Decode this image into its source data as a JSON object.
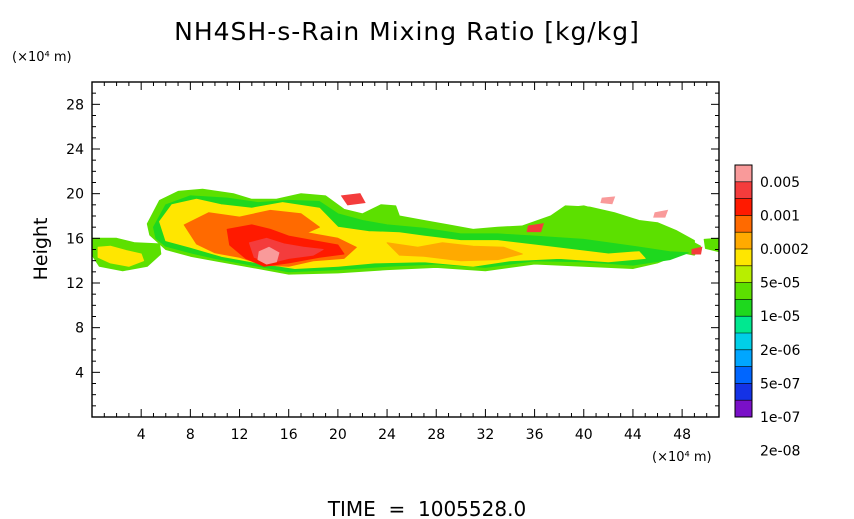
{
  "chart_data": {
    "type": "heatmap",
    "title": "NH4SH-s-Rain Mixing Ratio [kg/kg]",
    "ylabel": "Height",
    "x_unit_label": "(×10⁴ m)",
    "y_unit_label": "(×10⁴ m)",
    "xlim": [
      0,
      51
    ],
    "ylim": [
      0,
      30
    ],
    "x_ticks": [
      "4",
      "8",
      "12",
      "16",
      "20",
      "24",
      "28",
      "32",
      "36",
      "40",
      "44",
      "48"
    ],
    "y_ticks": [
      "4",
      "8",
      "12",
      "16",
      "20",
      "24",
      "28"
    ],
    "footer": "TIME  =  1005528.0",
    "colorbar": {
      "labels": [
        "0.005",
        "0.001",
        "0.0002",
        "5e-05",
        "1e-05",
        "2e-06",
        "5e-07",
        "1e-07",
        "2e-08"
      ],
      "colors": [
        "#f99a9a",
        "#f43c3c",
        "#ff1a00",
        "#ff6a00",
        "#ffaa00",
        "#ffe600",
        "#b8ee00",
        "#5ce000",
        "#1ed81e",
        "#00e890",
        "#00cfe8",
        "#00a6ff",
        "#0066ff",
        "#1432e6",
        "#7a10c8"
      ]
    },
    "regions": [
      {
        "name": "left-edge-low",
        "level": 7,
        "poly": [
          [
            0,
            16
          ],
          [
            2,
            16
          ],
          [
            3.5,
            15.6
          ],
          [
            5.5,
            15.5
          ],
          [
            5.6,
            14.6
          ],
          [
            4.5,
            13.5
          ],
          [
            2.5,
            13.1
          ],
          [
            0.6,
            13.5
          ],
          [
            0,
            14.5
          ]
        ]
      },
      {
        "name": "main-body-outer",
        "level": 7,
        "poly": [
          [
            4.5,
            17.3
          ],
          [
            5.5,
            19.4
          ],
          [
            7,
            20.2
          ],
          [
            9,
            20.4
          ],
          [
            11.5,
            20
          ],
          [
            13,
            19.5
          ],
          [
            15,
            19.5
          ],
          [
            17,
            20
          ],
          [
            19,
            19.8
          ],
          [
            20.5,
            18.6
          ],
          [
            22,
            18.2
          ],
          [
            23.5,
            19
          ],
          [
            24.7,
            18.9
          ],
          [
            25,
            18
          ],
          [
            27,
            17.6
          ],
          [
            29,
            17.2
          ],
          [
            31,
            16.8
          ],
          [
            33,
            17
          ],
          [
            35,
            17.1
          ],
          [
            37,
            16.9
          ],
          [
            38.4,
            18.7
          ],
          [
            40,
            18.9
          ],
          [
            42,
            18.3
          ],
          [
            44,
            17.5
          ],
          [
            46,
            17.2
          ],
          [
            47.5,
            16.6
          ],
          [
            49,
            15.6
          ],
          [
            49.5,
            15.3
          ],
          [
            49,
            14.5
          ],
          [
            48,
            14.7
          ],
          [
            46,
            13.8
          ],
          [
            44,
            13.3
          ],
          [
            40,
            13.5
          ],
          [
            36,
            13.7
          ],
          [
            32,
            13.1
          ],
          [
            28,
            13.4
          ],
          [
            24,
            13.2
          ],
          [
            20,
            12.9
          ],
          [
            16,
            12.8
          ],
          [
            13,
            13.4
          ],
          [
            10,
            14
          ],
          [
            8,
            14.4
          ],
          [
            6,
            15
          ],
          [
            5.4,
            15.6
          ],
          [
            4.7,
            16.3
          ]
        ]
      },
      {
        "name": "upper-right-shelf",
        "level": 7,
        "poly": [
          [
            35,
            17.1
          ],
          [
            37.3,
            18
          ],
          [
            38.5,
            18.9
          ],
          [
            40.5,
            18.8
          ],
          [
            42.5,
            18.3
          ],
          [
            44.5,
            17.6
          ],
          [
            46,
            17.4
          ],
          [
            47.5,
            16.7
          ],
          [
            49,
            15.8
          ],
          [
            49,
            14.8
          ],
          [
            46,
            15.2
          ],
          [
            43,
            15.8
          ],
          [
            40,
            16
          ],
          [
            37,
            16.3
          ]
        ]
      },
      {
        "name": "main-body-blue",
        "level": 6,
        "poly": [
          [
            5,
            17
          ],
          [
            6,
            19
          ],
          [
            8,
            19.8
          ],
          [
            11,
            19.6
          ],
          [
            13.5,
            19.2
          ],
          [
            16,
            19.4
          ],
          [
            18.5,
            19.3
          ],
          [
            20,
            18.2
          ],
          [
            22,
            17.6
          ],
          [
            24,
            17.2
          ],
          [
            27,
            16.9
          ],
          [
            30,
            16.4
          ],
          [
            33,
            16.4
          ],
          [
            36,
            16.2
          ],
          [
            40,
            15.9
          ],
          [
            44,
            15.3
          ],
          [
            47,
            14.8
          ],
          [
            48.5,
            14.7
          ],
          [
            47,
            14.1
          ],
          [
            44,
            13.6
          ],
          [
            40,
            13.9
          ],
          [
            36,
            14
          ],
          [
            32,
            13.4
          ],
          [
            28,
            13.7
          ],
          [
            24,
            13.5
          ],
          [
            20,
            13.2
          ],
          [
            16,
            13
          ],
          [
            13,
            13.6
          ],
          [
            10,
            14.2
          ],
          [
            8,
            14.7
          ],
          [
            6,
            15.3
          ],
          [
            5.2,
            16
          ]
        ]
      },
      {
        "name": "main-body-green",
        "level": 9,
        "poly": [
          [
            5.5,
            17.5
          ],
          [
            6.5,
            19
          ],
          [
            8.5,
            19.5
          ],
          [
            10.5,
            19
          ],
          [
            13,
            18.7
          ],
          [
            15.5,
            19.2
          ],
          [
            18.5,
            18.7
          ],
          [
            20,
            17
          ],
          [
            22.5,
            16.6
          ],
          [
            25,
            16.5
          ],
          [
            27,
            16.2
          ],
          [
            30,
            15.8
          ],
          [
            33,
            15.8
          ],
          [
            36,
            15.4
          ],
          [
            39,
            15
          ],
          [
            42,
            14.6
          ],
          [
            44.5,
            14.8
          ],
          [
            45,
            14.2
          ],
          [
            42,
            13.9
          ],
          [
            38,
            14.2
          ],
          [
            34,
            14
          ],
          [
            31,
            13.5
          ],
          [
            27,
            13.9
          ],
          [
            23,
            13.8
          ],
          [
            20,
            13.5
          ],
          [
            16.5,
            13.3
          ],
          [
            13.5,
            13.8
          ],
          [
            10.5,
            14.4
          ],
          [
            8,
            15.2
          ],
          [
            6,
            15.8
          ]
        ]
      },
      {
        "name": "left-edge-green",
        "level": 9,
        "poly": [
          [
            0.5,
            15.2
          ],
          [
            1.5,
            15.3
          ],
          [
            2.8,
            14.9
          ],
          [
            4,
            14.6
          ],
          [
            4.2,
            14
          ],
          [
            3,
            13.5
          ],
          [
            1.5,
            13.8
          ],
          [
            0.5,
            14.3
          ]
        ]
      },
      {
        "name": "core-yellow",
        "level": 11,
        "poly": [
          [
            7.5,
            17.2
          ],
          [
            9.5,
            18.3
          ],
          [
            12,
            17.9
          ],
          [
            14.5,
            18.5
          ],
          [
            17,
            18.2
          ],
          [
            18.5,
            17
          ],
          [
            17.5,
            16.5
          ],
          [
            20,
            16
          ],
          [
            21.5,
            15.2
          ],
          [
            20.5,
            14.2
          ],
          [
            18,
            14
          ],
          [
            16,
            13.5
          ],
          [
            14,
            13.6
          ],
          [
            12,
            14.3
          ],
          [
            10,
            14.7
          ],
          [
            8.5,
            15.5
          ]
        ]
      },
      {
        "name": "core-orange",
        "level": 12,
        "poly": [
          [
            11,
            16.8
          ],
          [
            13,
            17.2
          ],
          [
            14.5,
            16.8
          ],
          [
            16,
            16.2
          ],
          [
            18,
            15.8
          ],
          [
            20,
            15.4
          ],
          [
            20.5,
            14.6
          ],
          [
            18.5,
            14.3
          ],
          [
            16,
            13.8
          ],
          [
            14,
            13.5
          ],
          [
            12.5,
            14.2
          ],
          [
            11.2,
            15.4
          ]
        ]
      },
      {
        "name": "core-red-orange",
        "level": 13,
        "poly": [
          [
            12.8,
            15.6
          ],
          [
            14.2,
            16
          ],
          [
            15.6,
            15.5
          ],
          [
            17.2,
            15.2
          ],
          [
            18.8,
            15
          ],
          [
            18,
            14.5
          ],
          [
            16,
            14.2
          ],
          [
            14.5,
            13.8
          ],
          [
            13.2,
            14.3
          ]
        ]
      },
      {
        "name": "core-red",
        "level": 14,
        "poly": [
          [
            13.6,
            14.8
          ],
          [
            14.4,
            15.2
          ],
          [
            15.2,
            14.7
          ],
          [
            15,
            13.9
          ],
          [
            14.2,
            13.7
          ],
          [
            13.5,
            14.1
          ]
        ]
      },
      {
        "name": "right-green-ridge",
        "level": 10,
        "poly": [
          [
            24,
            15.6
          ],
          [
            26.5,
            15.2
          ],
          [
            28.5,
            15.6
          ],
          [
            31,
            15.3
          ],
          [
            33.5,
            15.2
          ],
          [
            35,
            14.6
          ],
          [
            33,
            14.1
          ],
          [
            30,
            14
          ],
          [
            27,
            14.4
          ],
          [
            25,
            14.5
          ]
        ]
      },
      {
        "name": "right-edge-high",
        "level": 7,
        "poly": [
          [
            49.8,
            15.9
          ],
          [
            51,
            16
          ],
          [
            51,
            14.8
          ],
          [
            49.9,
            15.1
          ]
        ]
      }
    ],
    "wisps": [
      {
        "level": 13,
        "poly": [
          [
            20.3,
            19.8
          ],
          [
            21.8,
            20
          ],
          [
            22.2,
            19.2
          ],
          [
            20.8,
            19
          ]
        ]
      },
      {
        "level": 14,
        "poly": [
          [
            41.5,
            19.6
          ],
          [
            42.5,
            19.7
          ],
          [
            42.3,
            19.1
          ],
          [
            41.4,
            19.2
          ]
        ]
      },
      {
        "level": 14,
        "poly": [
          [
            45.8,
            18.3
          ],
          [
            46.8,
            18.5
          ],
          [
            46.6,
            17.9
          ],
          [
            45.7,
            17.9
          ]
        ]
      },
      {
        "level": 13,
        "poly": [
          [
            35.5,
            17.1
          ],
          [
            36.7,
            17.3
          ],
          [
            36.5,
            16.6
          ],
          [
            35.4,
            16.6
          ]
        ]
      },
      {
        "level": 13,
        "poly": [
          [
            48.8,
            15
          ],
          [
            49.6,
            15.2
          ],
          [
            49.5,
            14.6
          ],
          [
            48.8,
            14.6
          ]
        ]
      }
    ]
  }
}
